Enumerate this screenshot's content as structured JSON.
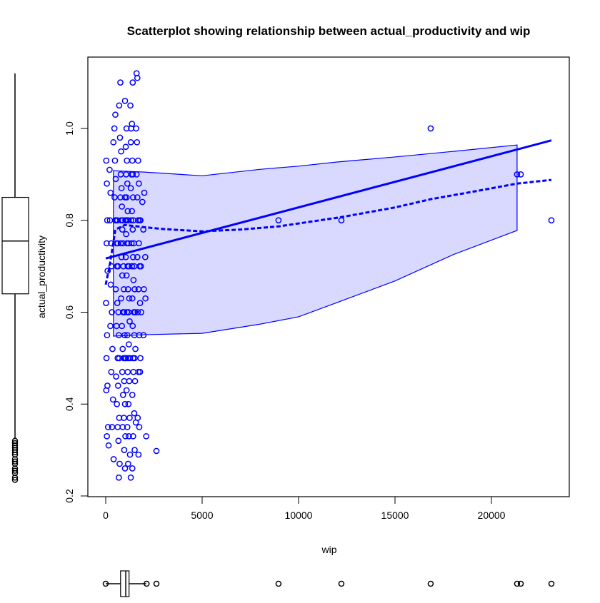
{
  "chart_data": {
    "type": "scatter",
    "title": "Scatterplot showing relationship between actual_productivity and wip",
    "xlabel": "wip",
    "ylabel": "actual_productivity",
    "xlim": [
      -900,
      24000
    ],
    "ylim": [
      0.2,
      1.12
    ],
    "x_ticks": [
      "0",
      "5000",
      "10000",
      "15000",
      "20000"
    ],
    "y_ticks": [
      "0.2",
      "0.4",
      "0.6",
      "0.8",
      "1.0"
    ],
    "grid": false,
    "legend": "none",
    "colors": {
      "points": "#0000ff",
      "band_fill": "#d9d9ff",
      "boxplot": "#000000"
    },
    "points": [
      [
        8960,
        0.8
      ],
      [
        12220,
        0.8
      ],
      [
        16850,
        1.0
      ],
      [
        21330,
        0.9
      ],
      [
        21520,
        0.9
      ],
      [
        23110,
        0.8
      ],
      [
        2630,
        0.298
      ],
      [
        30,
        0.93
      ],
      [
        60,
        0.88
      ],
      [
        80,
        0.8
      ],
      [
        50,
        0.75
      ],
      [
        100,
        0.69
      ],
      [
        20,
        0.62
      ],
      [
        70,
        0.55
      ],
      [
        40,
        0.5
      ],
      [
        90,
        0.44
      ],
      [
        30,
        0.43
      ],
      [
        120,
        0.35
      ],
      [
        60,
        0.33
      ],
      [
        150,
        0.31
      ],
      [
        200,
        0.91
      ],
      [
        250,
        0.86
      ],
      [
        220,
        0.8
      ],
      [
        280,
        0.75
      ],
      [
        300,
        0.7
      ],
      [
        260,
        0.66
      ],
      [
        320,
        0.6
      ],
      [
        240,
        0.57
      ],
      [
        350,
        0.52
      ],
      [
        290,
        0.47
      ],
      [
        380,
        0.41
      ],
      [
        330,
        0.35
      ],
      [
        410,
        0.28
      ],
      [
        400,
        0.97
      ],
      [
        450,
        1.0
      ],
      [
        500,
        1.03
      ],
      [
        480,
        0.93
      ],
      [
        520,
        0.89
      ],
      [
        460,
        0.85
      ],
      [
        540,
        0.8
      ],
      [
        500,
        0.8
      ],
      [
        600,
        0.8
      ],
      [
        560,
        0.75
      ],
      [
        620,
        0.75
      ],
      [
        580,
        0.7
      ],
      [
        640,
        0.7
      ],
      [
        520,
        0.65
      ],
      [
        600,
        0.62
      ],
      [
        660,
        0.6
      ],
      [
        560,
        0.57
      ],
      [
        680,
        0.55
      ],
      [
        620,
        0.5
      ],
      [
        700,
        0.5
      ],
      [
        540,
        0.46
      ],
      [
        640,
        0.44
      ],
      [
        580,
        0.4
      ],
      [
        700,
        0.37
      ],
      [
        620,
        0.35
      ],
      [
        660,
        0.32
      ],
      [
        720,
        0.27
      ],
      [
        680,
        0.24
      ],
      [
        700,
        1.05
      ],
      [
        760,
        1.1
      ],
      [
        740,
        0.98
      ],
      [
        800,
        0.95
      ],
      [
        780,
        0.9
      ],
      [
        820,
        0.87
      ],
      [
        760,
        0.85
      ],
      [
        840,
        0.83
      ],
      [
        800,
        0.8
      ],
      [
        880,
        0.8
      ],
      [
        860,
        0.78
      ],
      [
        780,
        0.75
      ],
      [
        900,
        0.75
      ],
      [
        820,
        0.72
      ],
      [
        920,
        0.7
      ],
      [
        860,
        0.68
      ],
      [
        940,
        0.65
      ],
      [
        800,
        0.63
      ],
      [
        900,
        0.6
      ],
      [
        960,
        0.6
      ],
      [
        840,
        0.57
      ],
      [
        980,
        0.55
      ],
      [
        880,
        0.52
      ],
      [
        940,
        0.5
      ],
      [
        1000,
        0.5
      ],
      [
        860,
        0.47
      ],
      [
        960,
        0.45
      ],
      [
        900,
        0.42
      ],
      [
        1000,
        0.4
      ],
      [
        940,
        0.37
      ],
      [
        880,
        0.35
      ],
      [
        1020,
        0.33
      ],
      [
        960,
        0.3
      ],
      [
        1000,
        0.26
      ],
      [
        1000,
        1.06
      ],
      [
        1080,
        1.0
      ],
      [
        1040,
        0.96
      ],
      [
        1100,
        0.93
      ],
      [
        1060,
        0.9
      ],
      [
        1120,
        0.88
      ],
      [
        1000,
        0.85
      ],
      [
        1080,
        0.85
      ],
      [
        1140,
        0.82
      ],
      [
        1020,
        0.8
      ],
      [
        1100,
        0.8
      ],
      [
        1160,
        0.8
      ],
      [
        1060,
        0.77
      ],
      [
        1180,
        0.75
      ],
      [
        1100,
        0.75
      ],
      [
        1040,
        0.72
      ],
      [
        1140,
        0.7
      ],
      [
        1200,
        0.7
      ],
      [
        1080,
        0.68
      ],
      [
        1160,
        0.65
      ],
      [
        1220,
        0.63
      ],
      [
        1100,
        0.6
      ],
      [
        1180,
        0.6
      ],
      [
        1240,
        0.58
      ],
      [
        1120,
        0.55
      ],
      [
        1200,
        0.53
      ],
      [
        1060,
        0.5
      ],
      [
        1160,
        0.5
      ],
      [
        1260,
        0.5
      ],
      [
        1140,
        0.47
      ],
      [
        1220,
        0.45
      ],
      [
        1080,
        0.43
      ],
      [
        1180,
        0.4
      ],
      [
        1240,
        0.37
      ],
      [
        1120,
        0.35
      ],
      [
        1200,
        0.33
      ],
      [
        1260,
        0.29
      ],
      [
        1160,
        0.27
      ],
      [
        1300,
        0.24
      ],
      [
        1280,
        1.05
      ],
      [
        1320,
        1.0
      ],
      [
        1360,
        1.01
      ],
      [
        1300,
        0.97
      ],
      [
        1380,
        0.93
      ],
      [
        1340,
        0.9
      ],
      [
        1400,
        0.9
      ],
      [
        1300,
        0.87
      ],
      [
        1420,
        0.85
      ],
      [
        1360,
        0.82
      ],
      [
        1440,
        0.8
      ],
      [
        1320,
        0.8
      ],
      [
        1400,
        0.78
      ],
      [
        1460,
        0.75
      ],
      [
        1340,
        0.75
      ],
      [
        1420,
        0.72
      ],
      [
        1480,
        0.7
      ],
      [
        1360,
        0.7
      ],
      [
        1440,
        0.67
      ],
      [
        1500,
        0.65
      ],
      [
        1380,
        0.63
      ],
      [
        1460,
        0.6
      ],
      [
        1520,
        0.6
      ],
      [
        1400,
        0.57
      ],
      [
        1480,
        0.55
      ],
      [
        1540,
        0.52
      ],
      [
        1420,
        0.5
      ],
      [
        1500,
        0.5
      ],
      [
        1440,
        0.47
      ],
      [
        1520,
        0.45
      ],
      [
        1380,
        0.42
      ],
      [
        1480,
        0.38
      ],
      [
        1560,
        0.36
      ],
      [
        1420,
        0.33
      ],
      [
        1500,
        0.3
      ],
      [
        1380,
        0.26
      ],
      [
        1400,
        1.1
      ],
      [
        1600,
        1.12
      ],
      [
        1640,
        1.11
      ],
      [
        1580,
        1.0
      ],
      [
        1620,
        0.97
      ],
      [
        1680,
        0.93
      ],
      [
        1600,
        0.9
      ],
      [
        1720,
        0.88
      ],
      [
        1640,
        0.85
      ],
      [
        1760,
        0.8
      ],
      [
        1680,
        0.8
      ],
      [
        1800,
        0.8
      ],
      [
        1720,
        0.75
      ],
      [
        1640,
        0.72
      ],
      [
        1760,
        0.7
      ],
      [
        1820,
        0.7
      ],
      [
        1700,
        0.65
      ],
      [
        1780,
        0.62
      ],
      [
        1660,
        0.6
      ],
      [
        1840,
        0.6
      ],
      [
        1740,
        0.55
      ],
      [
        1800,
        0.5
      ],
      [
        1700,
        0.47
      ],
      [
        1780,
        0.47
      ],
      [
        1660,
        0.37
      ],
      [
        1740,
        0.35
      ],
      [
        1700,
        0.29
      ],
      [
        1900,
        0.84
      ],
      [
        2000,
        0.86
      ],
      [
        1950,
        0.78
      ],
      [
        2050,
        0.72
      ],
      [
        1980,
        0.65
      ],
      [
        2060,
        0.63
      ],
      [
        1960,
        0.55
      ],
      [
        2100,
        0.33
      ]
    ],
    "fit_line": {
      "style": "solid",
      "x": [
        0,
        23110
      ],
      "y": [
        0.717,
        0.974
      ]
    },
    "smooth_line": {
      "style": "dashed",
      "x": [
        0,
        200,
        500,
        1000,
        2000,
        3000,
        5000,
        7000,
        9000,
        12220,
        15000,
        16850,
        19000,
        21330,
        23110
      ],
      "y": [
        0.66,
        0.7,
        0.78,
        0.79,
        0.785,
        0.781,
        0.776,
        0.78,
        0.787,
        0.807,
        0.828,
        0.846,
        0.862,
        0.88,
        0.888
      ]
    },
    "confidence_band": {
      "x": [
        400,
        2000,
        5000,
        8000,
        10000,
        12000,
        15000,
        18000,
        21330
      ],
      "upper": [
        0.908,
        0.905,
        0.897,
        0.911,
        0.918,
        0.927,
        0.938,
        0.95,
        0.964
      ],
      "lower": [
        0.548,
        0.551,
        0.554,
        0.574,
        0.59,
        0.621,
        0.668,
        0.725,
        0.778
      ]
    },
    "y_boxplot": {
      "whisker_low": 0.324,
      "q1": 0.64,
      "median": 0.755,
      "q3": 0.85,
      "whisker_high": 1.12,
      "outliers": [
        0.235,
        0.24,
        0.25,
        0.255,
        0.26,
        0.27,
        0.275,
        0.28,
        0.29,
        0.295,
        0.3,
        0.305,
        0.31,
        0.315,
        0.32
      ]
    },
    "x_boxplot": {
      "whisker_low": 0,
      "q1": 770,
      "median": 1040,
      "q3": 1210,
      "whisker_high": 2100,
      "outliers": [
        2120,
        2630,
        8960,
        12220,
        16850,
        21330,
        21520,
        23110
      ]
    }
  }
}
